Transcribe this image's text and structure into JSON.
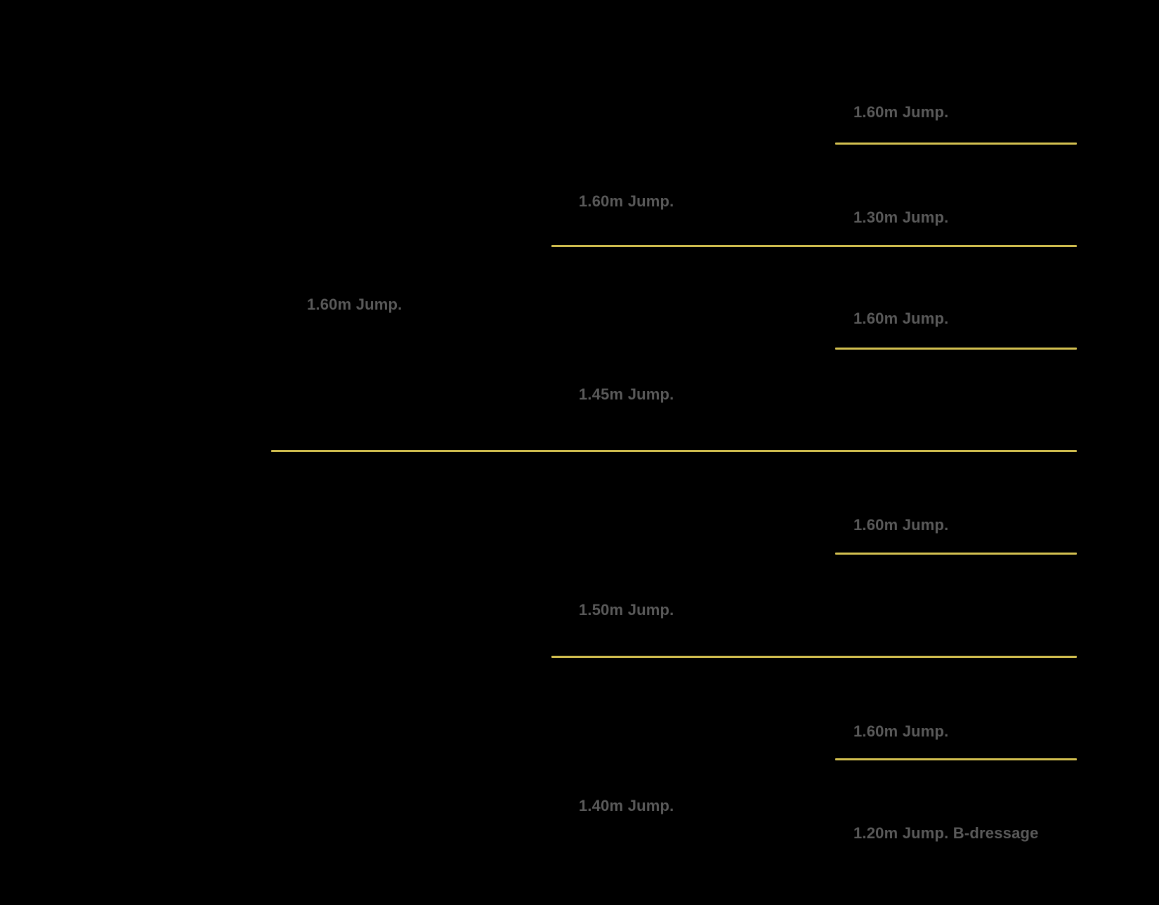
{
  "colors": {
    "background": "#000000",
    "separator": "#d3c050",
    "label": "#5a5a5a"
  },
  "pedigree": {
    "generation_1": [
      "1.60m Jump."
    ],
    "generation_2": [
      "1.60m Jump.",
      "1.45m Jump.",
      "1.50m Jump.",
      "1.40m Jump."
    ],
    "generation_3": [
      "1.60m Jump.",
      "1.30m Jump.",
      "1.60m Jump.",
      "1.60m Jump.",
      "1.60m Jump.",
      "1.20m Jump. B-dressage"
    ]
  }
}
